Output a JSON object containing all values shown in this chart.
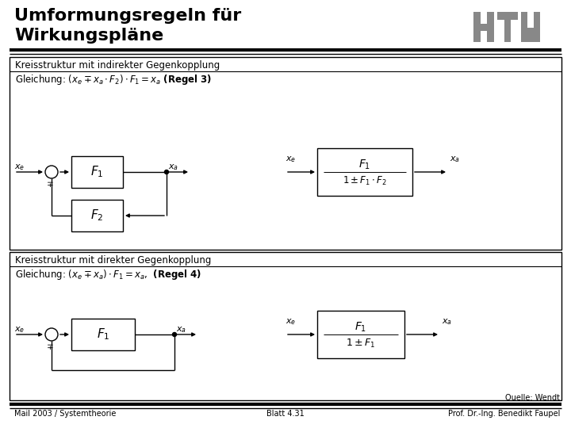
{
  "title_line1": "Umformungsregeln für",
  "title_line2": "Wirkungspläne",
  "title_fontsize": 16,
  "bg_color": "#ffffff",
  "text_color": "#000000",
  "gray_color": "#888888",
  "box1_title": "Kreisstruktur mit indirekter Gegenkopplung",
  "box2_title": "Kreisstruktur mit direkter Gegenkopplung",
  "footer_left": "Mail 2003 / Systemtheorie",
  "footer_center": "Blatt 4.31",
  "footer_right": "Prof. Dr.-Ing. Benedikt Faupel",
  "source": "Quelle: Wendt"
}
